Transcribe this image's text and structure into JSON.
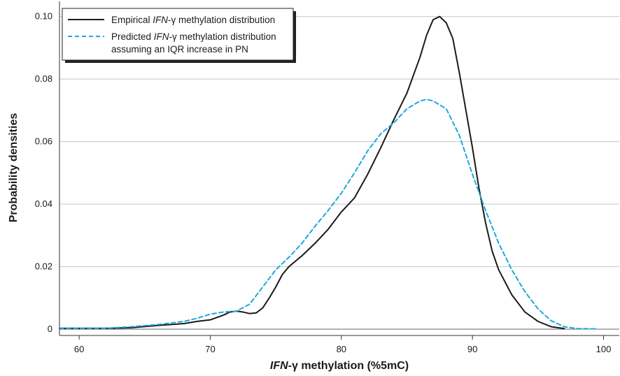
{
  "chart_data": {
    "type": "line",
    "xlabel": {
      "italic": "IFN",
      "rest": "-γ methylation (%5mC)"
    },
    "ylabel": "Probability densities",
    "xlim": [
      58.5,
      101.2
    ],
    "ylim": [
      -0.002,
      0.1035
    ],
    "xticks": [
      60,
      70,
      80,
      90,
      100
    ],
    "yticks": [
      0,
      0.02,
      0.04,
      0.06,
      0.08,
      0.1
    ],
    "ytick_labels": [
      "0",
      "0.02",
      "0.04",
      "0.06",
      "0.08",
      "0.10"
    ],
    "grid": "horizontal",
    "legend": {
      "position": "top-left",
      "entries": [
        {
          "pre": "Empirical ",
          "italic": "IFN",
          "post": "-γ methylation distribution",
          "line2": ""
        },
        {
          "pre": "Predicted ",
          "italic": "IFN",
          "post": "-γ methylation distribution",
          "line2": "assuming an IQR increase in PN"
        }
      ]
    },
    "series": [
      {
        "color": "#1a1a1a",
        "style": "solid",
        "x": [
          58.5,
          62,
          64,
          66,
          68,
          69,
          70,
          71,
          71.5,
          72,
          72.5,
          73,
          73.5,
          74,
          74.5,
          75,
          75.5,
          76,
          77,
          78,
          79,
          80,
          81,
          82,
          83,
          84,
          85,
          86,
          86.5,
          87,
          87.5,
          88,
          88.5,
          89,
          89.5,
          90,
          90.5,
          91,
          91.5,
          92,
          93,
          94,
          95,
          96,
          97
        ],
        "y": [
          0.0003,
          0.0003,
          0.0005,
          0.0012,
          0.0018,
          0.0025,
          0.003,
          0.0045,
          0.0055,
          0.0058,
          0.0055,
          0.005,
          0.0052,
          0.0068,
          0.01,
          0.0135,
          0.0175,
          0.02,
          0.0235,
          0.0275,
          0.032,
          0.0375,
          0.042,
          0.0495,
          0.058,
          0.067,
          0.0755,
          0.087,
          0.094,
          0.099,
          0.1,
          0.098,
          0.093,
          0.082,
          0.07,
          0.058,
          0.045,
          0.034,
          0.025,
          0.019,
          0.011,
          0.0055,
          0.0025,
          0.0008,
          0.0002
        ]
      },
      {
        "color": "#1ea8df",
        "style": "dashed",
        "x": [
          58.5,
          62,
          64,
          66,
          68,
          69,
          70,
          71,
          72,
          73,
          74,
          75,
          76,
          77,
          78,
          79,
          80,
          81,
          82,
          83,
          84,
          85,
          86,
          86.5,
          87,
          88,
          89,
          90,
          91,
          92,
          93,
          94,
          95,
          96,
          97,
          98,
          99.5
        ],
        "y": [
          0.0003,
          0.0003,
          0.0008,
          0.0015,
          0.0025,
          0.0035,
          0.0048,
          0.0055,
          0.0058,
          0.008,
          0.0135,
          0.019,
          0.023,
          0.0275,
          0.033,
          0.038,
          0.0435,
          0.05,
          0.057,
          0.0625,
          0.066,
          0.0705,
          0.073,
          0.0735,
          0.073,
          0.0705,
          0.062,
          0.0495,
          0.038,
          0.0275,
          0.019,
          0.012,
          0.0065,
          0.0027,
          0.0008,
          0.0002,
          0.0001
        ]
      }
    ]
  }
}
